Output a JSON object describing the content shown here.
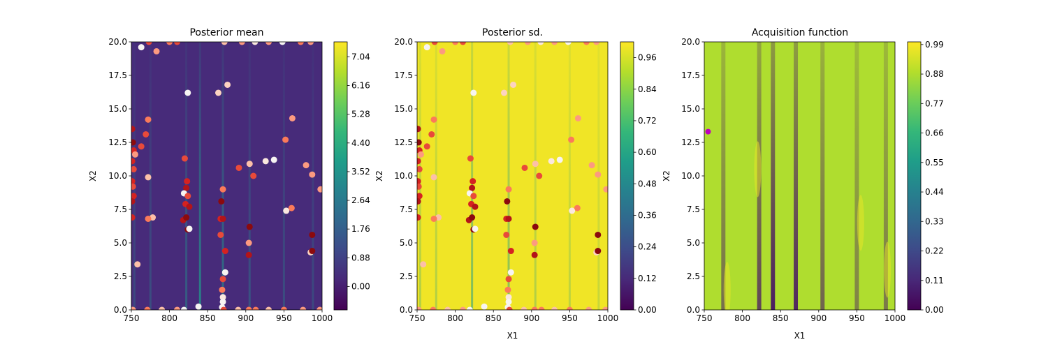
{
  "chart_data": [
    {
      "type": "heatmap",
      "title": "Posterior mean",
      "xlabel": "",
      "ylabel": "X2",
      "xlim": [
        750,
        1000
      ],
      "ylim": [
        0,
        20
      ],
      "xticks": [
        "750",
        "800",
        "850",
        "900",
        "950",
        "1000"
      ],
      "yticks": [
        "0.0",
        "2.5",
        "5.0",
        "7.5",
        "10.0",
        "12.5",
        "15.0",
        "17.5",
        "20.0"
      ],
      "colorbar": {
        "range": [
          -0.72,
          7.5
        ],
        "ticks": [
          "0.00",
          "0.88",
          "1.76",
          "2.64",
          "3.52",
          "4.40",
          "5.28",
          "6.16",
          "7.04"
        ]
      },
      "background_value": 0.28,
      "stripes": [
        {
          "x": 754,
          "strength": 0.35
        },
        {
          "x": 775,
          "strength": 0.4
        },
        {
          "x": 822,
          "strength": 0.55
        },
        {
          "x": 840,
          "strength": 0.85
        },
        {
          "x": 870,
          "strength": 0.7
        },
        {
          "x": 905,
          "strength": 0.45
        },
        {
          "x": 950,
          "strength": 0.4
        },
        {
          "x": 988,
          "strength": 0.35
        }
      ],
      "show_points": true
    },
    {
      "type": "heatmap",
      "title": "Posterior sd.",
      "xlabel": "X1",
      "ylabel": "X2",
      "xlim": [
        750,
        1000
      ],
      "ylim": [
        0,
        20
      ],
      "xticks": [
        "750",
        "800",
        "850",
        "900",
        "950",
        "1000"
      ],
      "yticks": [
        "0.0",
        "2.5",
        "5.0",
        "7.5",
        "10.0",
        "12.5",
        "15.0",
        "17.5",
        "20.0"
      ],
      "colorbar": {
        "range": [
          0,
          1.02
        ],
        "ticks": [
          "0.00",
          "0.12",
          "0.24",
          "0.36",
          "0.48",
          "0.60",
          "0.72",
          "0.84",
          "0.96"
        ]
      },
      "background_value": 1.0,
      "stripes": [
        {
          "x": 754,
          "strength": 0.3
        },
        {
          "x": 775,
          "strength": 0.3
        },
        {
          "x": 822,
          "strength": 0.55
        },
        {
          "x": 870,
          "strength": 0.5
        },
        {
          "x": 905,
          "strength": 0.3
        },
        {
          "x": 950,
          "strength": 0.25
        },
        {
          "x": 988,
          "strength": 0.2
        }
      ],
      "show_points": true
    },
    {
      "type": "heatmap",
      "title": "Acquisition function",
      "xlabel": "X1",
      "ylabel": "X2",
      "xlim": [
        750,
        1000
      ],
      "ylim": [
        0,
        20
      ],
      "xticks": [
        "750",
        "800",
        "850",
        "900",
        "950",
        "1000"
      ],
      "yticks": [
        "0.0",
        "2.5",
        "5.0",
        "7.5",
        "10.0",
        "12.5",
        "15.0",
        "17.5",
        "20.0"
      ],
      "colorbar": {
        "range": [
          0,
          1.0
        ],
        "ticks": [
          "0.00",
          "0.11",
          "0.22",
          "0.33",
          "0.44",
          "0.55",
          "0.66",
          "0.77",
          "0.88",
          "0.99"
        ]
      },
      "background_value": 0.88,
      "stripes": [
        {
          "x": 775,
          "strength": 0.55
        },
        {
          "x": 822,
          "strength": 0.75
        },
        {
          "x": 840,
          "strength": 0.95
        },
        {
          "x": 870,
          "strength": 0.9
        },
        {
          "x": 905,
          "strength": 0.6
        },
        {
          "x": 950,
          "strength": 0.45
        },
        {
          "x": 988,
          "strength": 0.5
        }
      ],
      "show_points": false,
      "next_point": {
        "x": 755,
        "y": 13.3,
        "color": "#bf00bf"
      }
    }
  ],
  "samples": [
    {
      "x": 763,
      "y": 19.6,
      "c": "#f7f4f2"
    },
    {
      "x": 773,
      "y": 20.0,
      "c": "#e84a3a"
    },
    {
      "x": 783,
      "y": 19.3,
      "c": "#fc9a80"
    },
    {
      "x": 800,
      "y": 20.0,
      "c": "#fb7a5a"
    },
    {
      "x": 810,
      "y": 20.0,
      "c": "#e84a3a"
    },
    {
      "x": 872,
      "y": 20.0,
      "c": "#fcc0a8"
    },
    {
      "x": 895,
      "y": 20.0,
      "c": "#fc9a80"
    },
    {
      "x": 912,
      "y": 20.0,
      "c": "#fbe8df"
    },
    {
      "x": 930,
      "y": 20.0,
      "c": "#fc9a80"
    },
    {
      "x": 948,
      "y": 20.0,
      "c": "#f7f4f2"
    },
    {
      "x": 972,
      "y": 20.0,
      "c": "#fb7a5a"
    },
    {
      "x": 985,
      "y": 20.0,
      "c": "#fc9a80"
    },
    {
      "x": 824,
      "y": 16.2,
      "c": "#f7f4f2"
    },
    {
      "x": 864,
      "y": 16.2,
      "c": "#fcd3c1"
    },
    {
      "x": 876,
      "y": 16.8,
      "c": "#fcd3c1"
    },
    {
      "x": 772,
      "y": 14.2,
      "c": "#fb7a5a"
    },
    {
      "x": 961,
      "y": 14.3,
      "c": "#fc9a80"
    },
    {
      "x": 751,
      "y": 13.5,
      "c": "#b31419"
    },
    {
      "x": 769,
      "y": 13.1,
      "c": "#e84a3a"
    },
    {
      "x": 752,
      "y": 12.5,
      "c": "#8b0a0e"
    },
    {
      "x": 763,
      "y": 12.2,
      "c": "#e84a3a"
    },
    {
      "x": 753,
      "y": 11.9,
      "c": "#d52221"
    },
    {
      "x": 755,
      "y": 11.6,
      "c": "#fc9a80"
    },
    {
      "x": 751,
      "y": 11.1,
      "c": "#d52221"
    },
    {
      "x": 753,
      "y": 10.5,
      "c": "#e84a3a"
    },
    {
      "x": 952,
      "y": 12.7,
      "c": "#fb7a5a"
    },
    {
      "x": 820,
      "y": 11.3,
      "c": "#e84a3a"
    },
    {
      "x": 891,
      "y": 10.6,
      "c": "#e84a3a"
    },
    {
      "x": 905,
      "y": 10.9,
      "c": "#fcc0a8"
    },
    {
      "x": 926,
      "y": 11.1,
      "c": "#fbe8df"
    },
    {
      "x": 937,
      "y": 11.2,
      "c": "#f7f4f2"
    },
    {
      "x": 979,
      "y": 10.8,
      "c": "#fc9a80"
    },
    {
      "x": 910,
      "y": 10.0,
      "c": "#e84a3a"
    },
    {
      "x": 987,
      "y": 10.1,
      "c": "#fc9a80"
    },
    {
      "x": 772,
      "y": 9.9,
      "c": "#fcc0a8"
    },
    {
      "x": 751,
      "y": 9.6,
      "c": "#d52221"
    },
    {
      "x": 752,
      "y": 9.2,
      "c": "#e84a3a"
    },
    {
      "x": 998,
      "y": 9.0,
      "c": "#fc9a80"
    },
    {
      "x": 823,
      "y": 9.6,
      "c": "#d52221"
    },
    {
      "x": 822,
      "y": 9.1,
      "c": "#b31419"
    },
    {
      "x": 870,
      "y": 9.0,
      "c": "#fb7a5a"
    },
    {
      "x": 819,
      "y": 8.7,
      "c": "#f7f4f2"
    },
    {
      "x": 824,
      "y": 8.5,
      "c": "#e84a3a"
    },
    {
      "x": 753,
      "y": 8.5,
      "c": "#d52221"
    },
    {
      "x": 751,
      "y": 8.1,
      "c": "#b31419"
    },
    {
      "x": 868,
      "y": 8.1,
      "c": "#8b0a0e"
    },
    {
      "x": 821,
      "y": 7.9,
      "c": "#d52221"
    },
    {
      "x": 826,
      "y": 7.7,
      "c": "#b31419"
    },
    {
      "x": 960,
      "y": 7.6,
      "c": "#fb7a5a"
    },
    {
      "x": 953,
      "y": 7.4,
      "c": "#fbe8df"
    },
    {
      "x": 778,
      "y": 6.9,
      "c": "#fcc0a8"
    },
    {
      "x": 772,
      "y": 6.8,
      "c": "#fb7a5a"
    },
    {
      "x": 751,
      "y": 6.9,
      "c": "#d52221"
    },
    {
      "x": 818,
      "y": 6.7,
      "c": "#b31419"
    },
    {
      "x": 822,
      "y": 6.9,
      "c": "#8b0a0e"
    },
    {
      "x": 867,
      "y": 6.8,
      "c": "#d52221"
    },
    {
      "x": 870,
      "y": 6.8,
      "c": "#b31419"
    },
    {
      "x": 905,
      "y": 6.2,
      "c": "#8b0a0e"
    },
    {
      "x": 824,
      "y": 6.0,
      "c": "#8b0a0e"
    },
    {
      "x": 826,
      "y": 6.05,
      "c": "#f7f4f2"
    },
    {
      "x": 987,
      "y": 5.6,
      "c": "#8b0a0e"
    },
    {
      "x": 867,
      "y": 5.6,
      "c": "#e84a3a"
    },
    {
      "x": 904,
      "y": 5.0,
      "c": "#fc9a80"
    },
    {
      "x": 873,
      "y": 4.4,
      "c": "#d52221"
    },
    {
      "x": 904,
      "y": 4.1,
      "c": "#b31419"
    },
    {
      "x": 985,
      "y": 4.3,
      "c": "#fcd3c1"
    },
    {
      "x": 987,
      "y": 4.4,
      "c": "#8b0a0e"
    },
    {
      "x": 758,
      "y": 3.4,
      "c": "#fcc0a8"
    },
    {
      "x": 873,
      "y": 2.8,
      "c": "#f7f4f2"
    },
    {
      "x": 870,
      "y": 2.3,
      "c": "#e84a3a"
    },
    {
      "x": 869,
      "y": 1.5,
      "c": "#fb7a5a"
    },
    {
      "x": 870,
      "y": 0.95,
      "c": "#fbe8df"
    },
    {
      "x": 870,
      "y": 0.6,
      "c": "#f7f4f2"
    },
    {
      "x": 869,
      "y": 0.2,
      "c": "#f7f4f2"
    },
    {
      "x": 838,
      "y": 0.25,
      "c": "#f7f4f2"
    },
    {
      "x": 752,
      "y": 0.0,
      "c": "#fc9a80"
    },
    {
      "x": 771,
      "y": 0.0,
      "c": "#fb7a5a"
    },
    {
      "x": 790,
      "y": 0.0,
      "c": "#fcc0a8"
    },
    {
      "x": 810,
      "y": 0.0,
      "c": "#fc9a80"
    },
    {
      "x": 819,
      "y": 0.0,
      "c": "#f7f4f2"
    },
    {
      "x": 871,
      "y": 0.0,
      "c": "#e84a3a"
    },
    {
      "x": 890,
      "y": 0.0,
      "c": "#fcc0a8"
    },
    {
      "x": 904,
      "y": 0.0,
      "c": "#fb7a5a"
    },
    {
      "x": 913,
      "y": 0.0,
      "c": "#fb7a5a"
    },
    {
      "x": 930,
      "y": 0.0,
      "c": "#fcc0a8"
    },
    {
      "x": 950,
      "y": 0.0,
      "c": "#fb7a5a"
    },
    {
      "x": 975,
      "y": 0.0,
      "c": "#fc9a80"
    },
    {
      "x": 997,
      "y": 0.0,
      "c": "#fc9a80"
    }
  ]
}
